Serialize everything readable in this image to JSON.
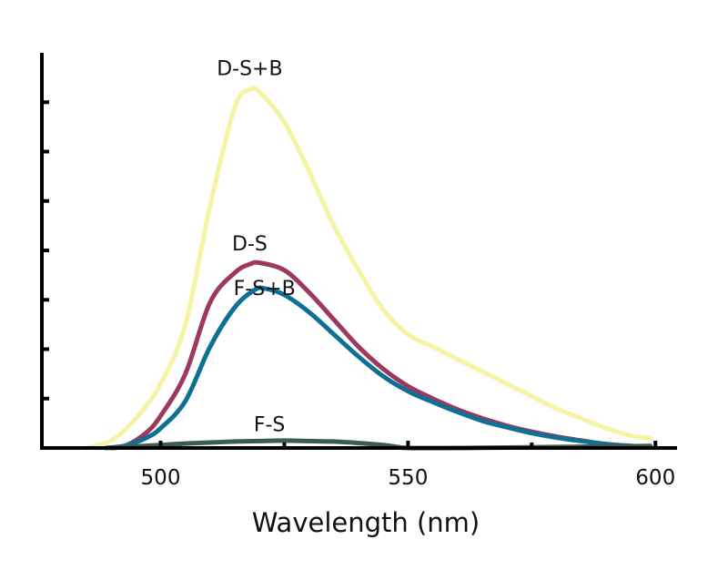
{
  "chart_data": {
    "type": "line",
    "title": "",
    "xlabel": "Wavelength (nm)",
    "ylabel": "",
    "xlim": [
      476,
      604
    ],
    "ylim": [
      0,
      8
    ],
    "x_ticks": [
      500,
      550,
      600
    ],
    "x_minor_ticks": [
      525,
      575
    ],
    "y_ticks": [
      1,
      2,
      3,
      4,
      5,
      6,
      7
    ],
    "grid": false,
    "legend": "none",
    "series": [
      {
        "name": "D-S+B",
        "color": "#f4f4a4",
        "label_at": [
          518,
          7.55
        ],
        "points": [
          [
            485,
            0
          ],
          [
            490,
            0.15
          ],
          [
            495,
            0.6
          ],
          [
            500,
            1.3
          ],
          [
            505,
            2.5
          ],
          [
            510,
            4.9
          ],
          [
            515,
            6.9
          ],
          [
            518,
            7.25
          ],
          [
            520,
            7.2
          ],
          [
            525,
            6.6
          ],
          [
            530,
            5.6
          ],
          [
            535,
            4.5
          ],
          [
            540,
            3.6
          ],
          [
            545,
            2.8
          ],
          [
            550,
            2.3
          ],
          [
            555,
            2.05
          ],
          [
            560,
            1.8
          ],
          [
            565,
            1.55
          ],
          [
            570,
            1.3
          ],
          [
            575,
            1.05
          ],
          [
            580,
            0.8
          ],
          [
            585,
            0.6
          ],
          [
            590,
            0.4
          ],
          [
            595,
            0.25
          ],
          [
            599,
            0.2
          ]
        ]
      },
      {
        "name": "D-S",
        "color": "#9b3a5e",
        "label_at": [
          518,
          4.0
        ],
        "points": [
          [
            490,
            0
          ],
          [
            493,
            0.05
          ],
          [
            497,
            0.3
          ],
          [
            500,
            0.65
          ],
          [
            505,
            1.5
          ],
          [
            510,
            2.95
          ],
          [
            515,
            3.55
          ],
          [
            518,
            3.72
          ],
          [
            520,
            3.75
          ],
          [
            525,
            3.6
          ],
          [
            530,
            3.15
          ],
          [
            535,
            2.6
          ],
          [
            540,
            2.05
          ],
          [
            545,
            1.6
          ],
          [
            550,
            1.25
          ],
          [
            555,
            1.0
          ],
          [
            560,
            0.78
          ],
          [
            565,
            0.6
          ],
          [
            570,
            0.45
          ],
          [
            575,
            0.33
          ],
          [
            580,
            0.23
          ],
          [
            585,
            0.15
          ],
          [
            590,
            0.08
          ],
          [
            595,
            0.04
          ],
          [
            599,
            0.02
          ]
        ]
      },
      {
        "name": "F-S+B",
        "color": "#0e7095",
        "label_at": [
          521,
          3.1
        ],
        "points": [
          [
            489,
            0
          ],
          [
            493,
            0.05
          ],
          [
            497,
            0.2
          ],
          [
            500,
            0.4
          ],
          [
            505,
            0.95
          ],
          [
            510,
            2.05
          ],
          [
            515,
            2.85
          ],
          [
            519,
            3.2
          ],
          [
            521,
            3.23
          ],
          [
            525,
            3.1
          ],
          [
            530,
            2.75
          ],
          [
            535,
            2.3
          ],
          [
            540,
            1.85
          ],
          [
            545,
            1.45
          ],
          [
            550,
            1.15
          ],
          [
            555,
            0.93
          ],
          [
            560,
            0.73
          ],
          [
            565,
            0.55
          ],
          [
            570,
            0.42
          ],
          [
            575,
            0.3
          ],
          [
            580,
            0.21
          ],
          [
            585,
            0.14
          ],
          [
            590,
            0.08
          ],
          [
            595,
            0.04
          ],
          [
            599,
            0.02
          ]
        ]
      },
      {
        "name": "F-S",
        "color": "#3b5e4e",
        "label_at": [
          522,
          0.34
        ],
        "points": [
          [
            490,
            0
          ],
          [
            495,
            0.03
          ],
          [
            500,
            0.06
          ],
          [
            505,
            0.09
          ],
          [
            510,
            0.11
          ],
          [
            515,
            0.13
          ],
          [
            520,
            0.14
          ],
          [
            525,
            0.15
          ],
          [
            530,
            0.14
          ],
          [
            535,
            0.13
          ],
          [
            540,
            0.1
          ],
          [
            545,
            0.06
          ],
          [
            548,
            0.02
          ],
          [
            550,
            0
          ],
          [
            560,
            0
          ],
          [
            570,
            0.01
          ],
          [
            580,
            0.02
          ],
          [
            590,
            0.03
          ],
          [
            599,
            0.04
          ]
        ]
      }
    ]
  }
}
